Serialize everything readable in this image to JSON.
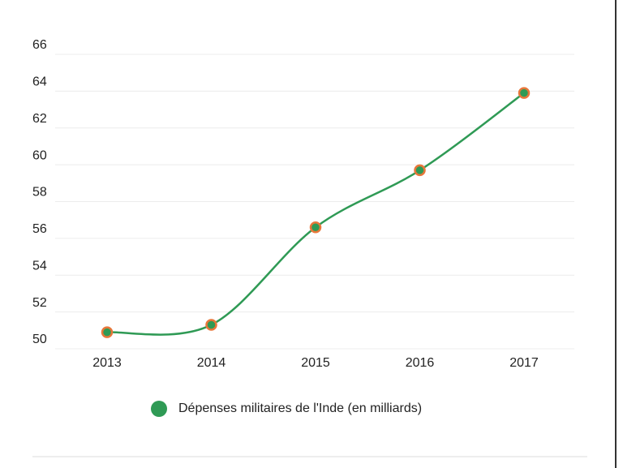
{
  "chart_data": {
    "type": "line",
    "categories": [
      "2013",
      "2014",
      "2015",
      "2016",
      "2017"
    ],
    "series": [
      {
        "name": "Dépenses militaires de l'Inde (en milliards)",
        "color": "#2f9a55",
        "marker_edge_color": "#e8773a",
        "values": [
          50.9,
          51.3,
          56.6,
          59.7,
          63.9
        ]
      }
    ],
    "ylim": [
      50,
      66
    ],
    "yticks": [
      50,
      52,
      54,
      56,
      58,
      60,
      62,
      64,
      66
    ],
    "grid": true,
    "smooth": true
  }
}
